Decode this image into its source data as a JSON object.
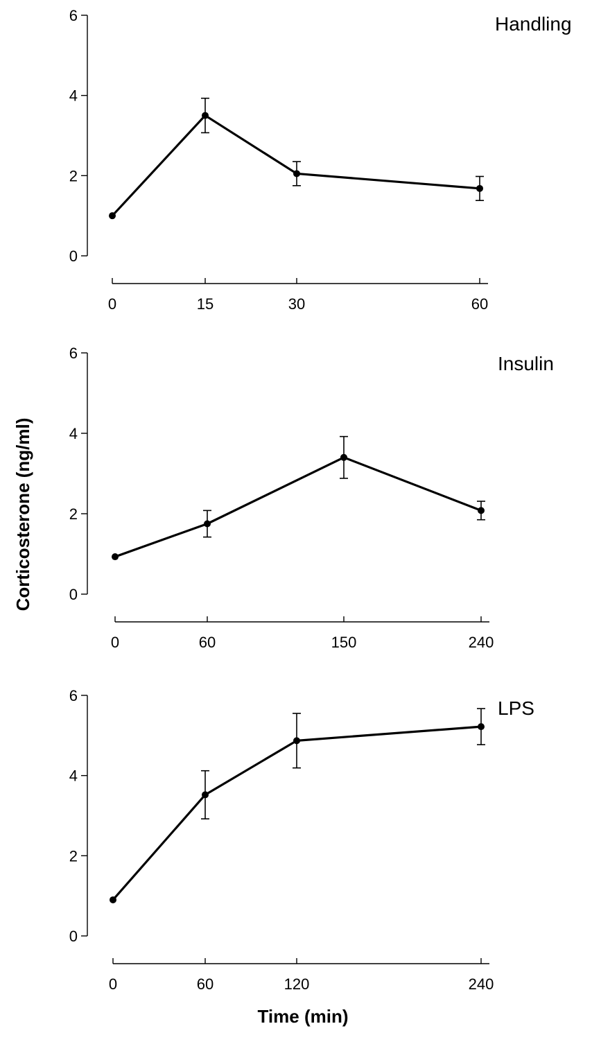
{
  "ylabel": "Corticosterone (ng/ml)",
  "xlabel": "Time (min)",
  "colors": {
    "line": "#000000",
    "background": "#ffffff"
  },
  "chart_data": [
    {
      "type": "line",
      "title": "Handling",
      "x": [
        0,
        15,
        30,
        60
      ],
      "xticks": [
        "0",
        "15",
        "30",
        "60"
      ],
      "y": [
        1.0,
        3.5,
        2.05,
        1.68
      ],
      "yerr": [
        0.0,
        0.43,
        0.3,
        0.3
      ],
      "ylim": [
        0,
        6
      ],
      "yticks": [
        "0",
        "2",
        "4",
        "6"
      ],
      "grid": false
    },
    {
      "type": "line",
      "title": "Insulin",
      "x": [
        0,
        60,
        150,
        240
      ],
      "xticks": [
        "0",
        "60",
        "150",
        "240"
      ],
      "y": [
        0.93,
        1.75,
        3.4,
        2.08
      ],
      "yerr": [
        0.0,
        0.33,
        0.52,
        0.23
      ],
      "ylim": [
        0,
        6
      ],
      "yticks": [
        "0",
        "2",
        "4",
        "6"
      ],
      "grid": false
    },
    {
      "type": "line",
      "title": "LPS",
      "x": [
        0,
        60,
        120,
        240
      ],
      "xticks": [
        "0",
        "60",
        "120",
        "240"
      ],
      "y": [
        0.9,
        3.52,
        4.87,
        5.22
      ],
      "yerr": [
        0.0,
        0.6,
        0.68,
        0.45
      ],
      "ylim": [
        0,
        6
      ],
      "yticks": [
        "0",
        "2",
        "4",
        "6"
      ],
      "grid": false
    }
  ]
}
